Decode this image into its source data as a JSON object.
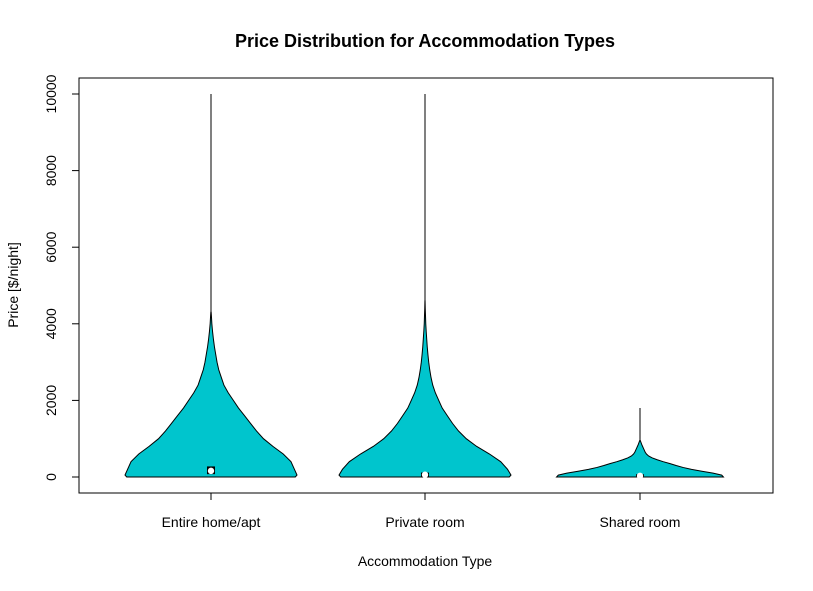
{
  "chart_data": {
    "type": "violin",
    "title": "Price Distribution for Accommodation Types",
    "xlabel": "Accommodation Type",
    "ylabel": "Price [$/night]",
    "categories": [
      "Entire home/apt",
      "Private room",
      "Shared room"
    ],
    "ylim": [
      0,
      10000
    ],
    "yticks": [
      "0",
      "2000",
      "4000",
      "6000",
      "8000",
      "10000"
    ],
    "fill_color": "#00c5cd",
    "series": [
      {
        "max": 10000,
        "median": 160,
        "q1": 100,
        "q3": 250,
        "profile": [
          [
            0,
            0.98
          ],
          [
            50,
            1.0
          ],
          [
            200,
            0.97
          ],
          [
            400,
            0.93
          ],
          [
            600,
            0.84
          ],
          [
            800,
            0.72
          ],
          [
            1000,
            0.61
          ],
          [
            1200,
            0.53
          ],
          [
            1400,
            0.46
          ],
          [
            1600,
            0.39
          ],
          [
            1800,
            0.32
          ],
          [
            2000,
            0.26
          ],
          [
            2200,
            0.2
          ],
          [
            2400,
            0.15
          ],
          [
            2600,
            0.12
          ],
          [
            2800,
            0.09
          ],
          [
            3000,
            0.07
          ],
          [
            3200,
            0.055
          ],
          [
            3400,
            0.04
          ],
          [
            3600,
            0.028
          ],
          [
            3800,
            0.018
          ],
          [
            4000,
            0.01
          ],
          [
            4200,
            0.005
          ],
          [
            4300,
            0.002
          ]
        ]
      },
      {
        "max": 10000,
        "median": 60,
        "q1": 40,
        "q3": 90,
        "profile": [
          [
            0,
            0.98
          ],
          [
            50,
            1.0
          ],
          [
            200,
            0.96
          ],
          [
            400,
            0.88
          ],
          [
            600,
            0.75
          ],
          [
            800,
            0.6
          ],
          [
            1000,
            0.48
          ],
          [
            1200,
            0.39
          ],
          [
            1400,
            0.32
          ],
          [
            1600,
            0.26
          ],
          [
            1800,
            0.2
          ],
          [
            2000,
            0.16
          ],
          [
            2200,
            0.12
          ],
          [
            2400,
            0.09
          ],
          [
            2600,
            0.07
          ],
          [
            2800,
            0.055
          ],
          [
            3000,
            0.043
          ],
          [
            3200,
            0.034
          ],
          [
            3400,
            0.026
          ],
          [
            3600,
            0.02
          ],
          [
            3800,
            0.014
          ],
          [
            4000,
            0.009
          ],
          [
            4200,
            0.006
          ],
          [
            4400,
            0.003
          ],
          [
            4600,
            0.001
          ]
        ]
      },
      {
        "max": 1800,
        "median": 30,
        "q1": 20,
        "q3": 45,
        "profile": [
          [
            0,
            0.97
          ],
          [
            50,
            0.95
          ],
          [
            100,
            0.85
          ],
          [
            150,
            0.72
          ],
          [
            200,
            0.6
          ],
          [
            250,
            0.5
          ],
          [
            300,
            0.42
          ],
          [
            350,
            0.35
          ],
          [
            400,
            0.27
          ],
          [
            450,
            0.2
          ],
          [
            500,
            0.14
          ],
          [
            550,
            0.1
          ],
          [
            600,
            0.075
          ],
          [
            650,
            0.06
          ],
          [
            700,
            0.05
          ],
          [
            750,
            0.04
          ],
          [
            800,
            0.03
          ],
          [
            850,
            0.02
          ],
          [
            900,
            0.012
          ],
          [
            950,
            0.004
          ]
        ]
      }
    ]
  }
}
